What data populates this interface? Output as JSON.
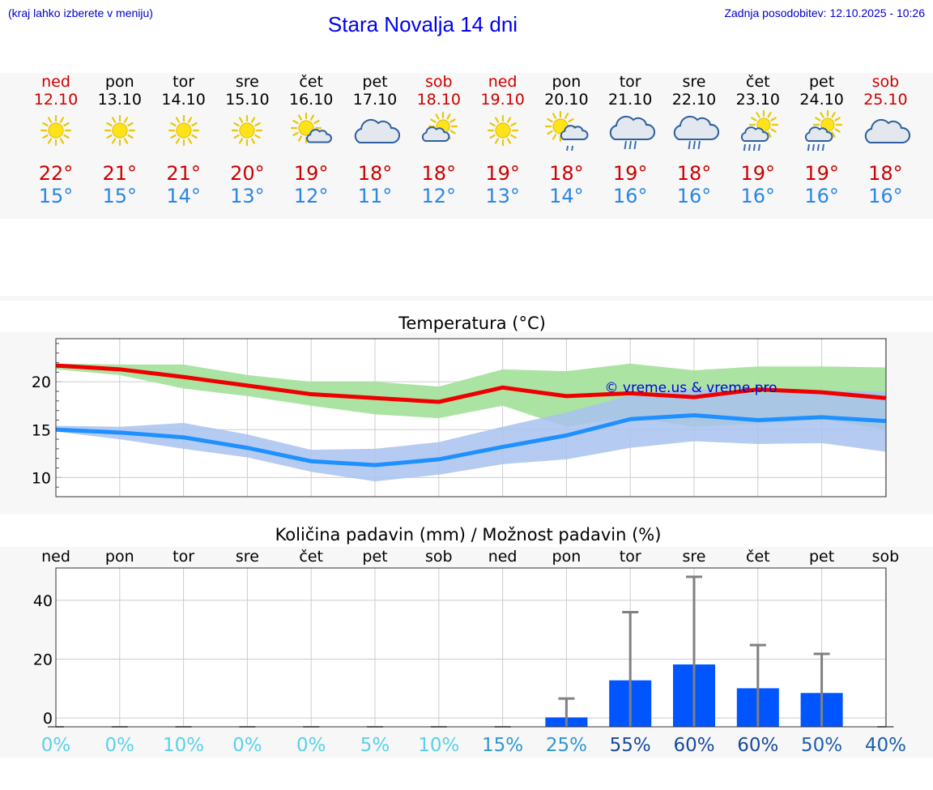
{
  "header": {
    "hint": "(kraj lahko izberete v meniju)",
    "title": "Stara Novalja 14 dni",
    "updated": "Zadnja posodobitev: 12.10.2025 - 10:26"
  },
  "days": [
    {
      "name": "ned",
      "date": "12.10",
      "weekend": true,
      "icon": "sun-icon",
      "max": "22°",
      "min": "15°"
    },
    {
      "name": "pon",
      "date": "13.10",
      "weekend": false,
      "icon": "sun-icon",
      "max": "21°",
      "min": "15°"
    },
    {
      "name": "tor",
      "date": "14.10",
      "weekend": false,
      "icon": "sun-icon",
      "max": "21°",
      "min": "14°"
    },
    {
      "name": "sre",
      "date": "15.10",
      "weekend": false,
      "icon": "sun-icon",
      "max": "20°",
      "min": "13°"
    },
    {
      "name": "čet",
      "date": "16.10",
      "weekend": false,
      "icon": "sun-small-cloud-icon",
      "max": "19°",
      "min": "12°"
    },
    {
      "name": "pet",
      "date": "17.10",
      "weekend": false,
      "icon": "cloud-icon",
      "max": "18°",
      "min": "11°"
    },
    {
      "name": "sob",
      "date": "18.10",
      "weekend": true,
      "icon": "sun-behind-cloud-icon",
      "max": "18°",
      "min": "12°"
    },
    {
      "name": "ned",
      "date": "19.10",
      "weekend": true,
      "icon": "sun-icon",
      "max": "19°",
      "min": "13°"
    },
    {
      "name": "pon",
      "date": "20.10",
      "weekend": false,
      "icon": "sun-cloud-rain-icon",
      "max": "18°",
      "min": "14°"
    },
    {
      "name": "tor",
      "date": "21.10",
      "weekend": false,
      "icon": "cloud-rain-icon",
      "max": "19°",
      "min": "16°"
    },
    {
      "name": "sre",
      "date": "22.10",
      "weekend": false,
      "icon": "cloud-rain-icon",
      "max": "18°",
      "min": "16°"
    },
    {
      "name": "čet",
      "date": "23.10",
      "weekend": false,
      "icon": "sun-cloud-heavy-rain-icon",
      "max": "19°",
      "min": "16°"
    },
    {
      "name": "pet",
      "date": "24.10",
      "weekend": false,
      "icon": "sun-cloud-heavy-rain-icon",
      "max": "19°",
      "min": "16°"
    },
    {
      "name": "sob",
      "date": "25.10",
      "weekend": true,
      "icon": "cloud-icon",
      "max": "18°",
      "min": "16°"
    }
  ],
  "colors": {
    "max_line": "#ee0000",
    "max_band": "#a6e29e",
    "min_line": "#1e90ff",
    "min_band": "#a8c2f0",
    "bar": "#0055ff",
    "whisker": "#808080"
  },
  "chart_data": [
    {
      "type": "line",
      "title": "Temperatura (°C)",
      "ylim": [
        8,
        24.5
      ],
      "yticks": [
        10,
        15,
        20
      ],
      "watermark": "© vreme.us & vreme.pro",
      "series": [
        {
          "name": "max",
          "values": [
            21.7,
            21.3,
            20.5,
            19.6,
            18.7,
            18.3,
            17.9,
            19.4,
            18.5,
            18.8,
            18.4,
            19.2,
            18.9,
            18.3
          ],
          "band_low": [
            21.3,
            20.7,
            19.3,
            18.5,
            17.5,
            16.6,
            16.2,
            17.5,
            15.3,
            16.3,
            15.3,
            15.6,
            16.1,
            15.0
          ],
          "band_high": [
            21.9,
            21.8,
            21.8,
            20.7,
            20.0,
            20.0,
            19.5,
            21.3,
            21.1,
            21.9,
            21.2,
            21.6,
            21.6,
            21.5
          ]
        },
        {
          "name": "min",
          "values": [
            15.0,
            14.7,
            14.2,
            13.1,
            11.7,
            11.3,
            11.9,
            13.2,
            14.4,
            16.1,
            16.5,
            16.0,
            16.3,
            15.9
          ],
          "band_low": [
            14.8,
            14.0,
            13.0,
            12.1,
            10.6,
            9.6,
            10.3,
            11.4,
            11.9,
            13.1,
            13.8,
            13.5,
            13.6,
            12.7
          ],
          "band_high": [
            15.4,
            15.3,
            15.7,
            14.5,
            12.9,
            13.0,
            13.7,
            15.3,
            16.8,
            18.6,
            19.3,
            18.8,
            19.1,
            19.0
          ]
        }
      ]
    },
    {
      "type": "bar",
      "title": "Količina padavin (mm) / Možnost padavin (%)",
      "categories": [
        "ned",
        "pon",
        "tor",
        "sre",
        "čet",
        "pet",
        "sob",
        "ned",
        "pon",
        "tor",
        "sre",
        "čet",
        "pet",
        "sob"
      ],
      "ylim": [
        -3,
        51
      ],
      "yticks": [
        0,
        20,
        40
      ],
      "values": [
        0,
        0,
        0,
        0,
        0,
        0,
        0,
        0,
        0.2,
        12.8,
        18.2,
        10.1,
        8.5,
        0
      ],
      "whisker_high": [
        0,
        0,
        0,
        0,
        0,
        0,
        0,
        0,
        6.6,
        36.0,
        48.0,
        24.8,
        21.8,
        0
      ],
      "chances": [
        "0%",
        "0%",
        "10%",
        "0%",
        "0%",
        "5%",
        "10%",
        "15%",
        "25%",
        "55%",
        "60%",
        "60%",
        "50%",
        "40%"
      ]
    }
  ]
}
